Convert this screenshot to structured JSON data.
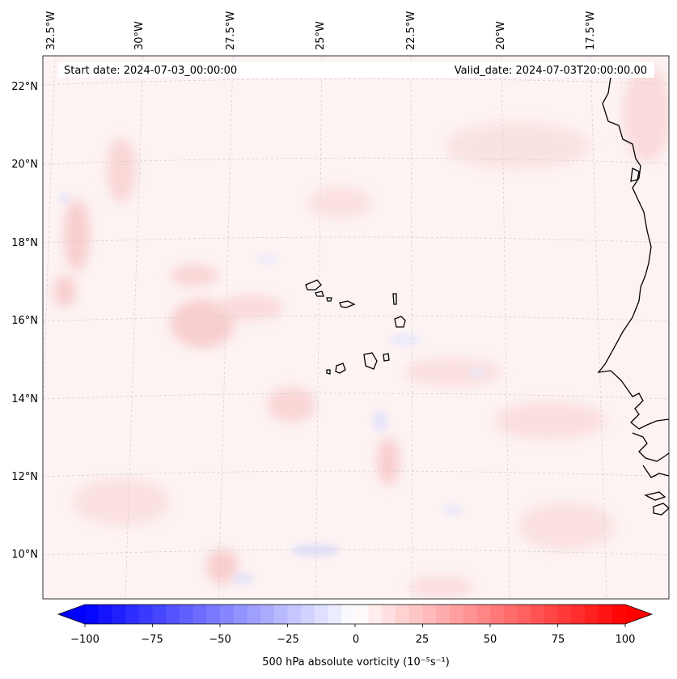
{
  "header": {
    "start_date": "Start date: 2024-07-03_00:00:00",
    "valid_date": "Valid_date: 2024-07-03T20:00:00.00"
  },
  "longitude_labels": [
    "32.5°W",
    "30°W",
    "27.5°W",
    "25°W",
    "22.5°W",
    "20°W",
    "17.5°W"
  ],
  "latitude_labels": [
    "22°N",
    "20°N",
    "18°N",
    "16°N",
    "14°N",
    "12°N",
    "10°N"
  ],
  "colorbar": {
    "label": "500 hPa absolute vorticity (10⁻⁵s⁻¹)",
    "min": -100,
    "max": 100,
    "tick_labels": [
      "−100",
      "−75",
      "−50",
      "−25",
      "0",
      "25",
      "50",
      "75",
      "100"
    ],
    "colors": {
      "low": "#0000ff",
      "mid": "#ffffff",
      "high": "#ff0000"
    }
  }
}
